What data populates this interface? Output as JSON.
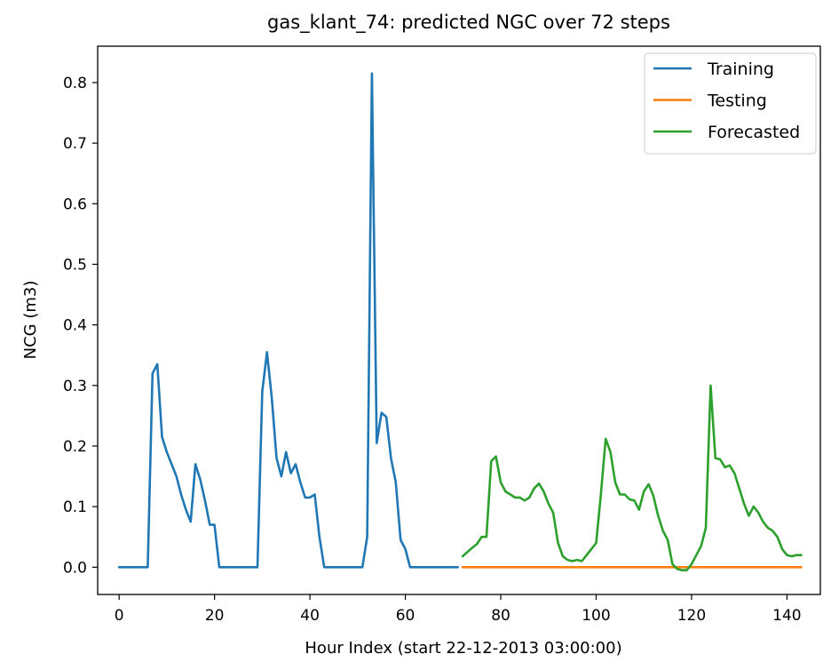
{
  "chart_data": {
    "type": "line",
    "title": "gas_klant_74: predicted NGC over 72 steps",
    "xlabel": "Hour Index (start 22-12-2013 03:00:00)",
    "ylabel": "NCG (m3)",
    "xlim": [
      -4.5,
      147
    ],
    "ylim": [
      -0.045,
      0.86
    ],
    "xticks": [
      0,
      20,
      40,
      60,
      80,
      100,
      120,
      140
    ],
    "yticks": [
      0.0,
      0.1,
      0.2,
      0.3,
      0.4,
      0.5,
      0.6,
      0.7,
      0.8
    ],
    "ytick_labels": [
      "0.0",
      "0.1",
      "0.2",
      "0.3",
      "0.4",
      "0.5",
      "0.6",
      "0.7",
      "0.8"
    ],
    "grid": false,
    "legend_position": "top-right",
    "series": [
      {
        "name": "Training",
        "color": "#1f77b4",
        "x": [
          0,
          1,
          2,
          3,
          4,
          5,
          6,
          7,
          8,
          9,
          10,
          11,
          12,
          13,
          14,
          15,
          16,
          17,
          18,
          19,
          20,
          21,
          22,
          23,
          24,
          25,
          26,
          27,
          28,
          29,
          30,
          31,
          32,
          33,
          34,
          35,
          36,
          37,
          38,
          39,
          40,
          41,
          42,
          43,
          44,
          45,
          46,
          47,
          48,
          49,
          50,
          51,
          52,
          53,
          54,
          55,
          56,
          57,
          58,
          59,
          60,
          61,
          62,
          63,
          64,
          65,
          66,
          67,
          68,
          69,
          70,
          71
        ],
        "y": [
          0,
          0,
          0,
          0,
          0,
          0,
          0,
          0.32,
          0.335,
          0.215,
          0.19,
          0.17,
          0.15,
          0.12,
          0.095,
          0.075,
          0.17,
          0.145,
          0.11,
          0.07,
          0.07,
          0,
          0,
          0,
          0,
          0,
          0,
          0,
          0,
          0,
          0.29,
          0.355,
          0.28,
          0.18,
          0.15,
          0.19,
          0.155,
          0.17,
          0.14,
          0.115,
          0.115,
          0.12,
          0.05,
          0,
          0,
          0,
          0,
          0,
          0,
          0,
          0,
          0,
          0.05,
          0.815,
          0.205,
          0.255,
          0.248,
          0.18,
          0.14,
          0.045,
          0.03,
          0,
          0,
          0,
          0,
          0,
          0,
          0,
          0,
          0,
          0,
          0
        ]
      },
      {
        "name": "Testing",
        "color": "#ff7f0e",
        "x": [
          72,
          73,
          74,
          75,
          76,
          77,
          78,
          79,
          80,
          81,
          82,
          83,
          84,
          85,
          86,
          87,
          88,
          89,
          90,
          91,
          92,
          93,
          94,
          95,
          96,
          97,
          98,
          99,
          100,
          101,
          102,
          103,
          104,
          105,
          106,
          107,
          108,
          109,
          110,
          111,
          112,
          113,
          114,
          115,
          116,
          117,
          118,
          119,
          120,
          121,
          122,
          123,
          124,
          125,
          126,
          127,
          128,
          129,
          130,
          131,
          132,
          133,
          134,
          135,
          136,
          137,
          138,
          139,
          140,
          141,
          142,
          143
        ],
        "y": [
          0,
          0,
          0,
          0,
          0,
          0,
          0,
          0,
          0,
          0,
          0,
          0,
          0,
          0,
          0,
          0,
          0,
          0,
          0,
          0,
          0,
          0,
          0,
          0,
          0,
          0,
          0,
          0,
          0,
          0,
          0,
          0,
          0,
          0,
          0,
          0,
          0,
          0,
          0,
          0,
          0,
          0,
          0,
          0,
          0,
          0,
          0,
          0,
          0,
          0,
          0,
          0,
          0,
          0,
          0,
          0,
          0,
          0,
          0,
          0,
          0,
          0,
          0,
          0,
          0,
          0,
          0,
          0,
          0,
          0,
          0,
          0
        ]
      },
      {
        "name": "Forecasted",
        "color": "#2ca02c",
        "x": [
          72,
          73,
          74,
          75,
          76,
          77,
          78,
          79,
          80,
          81,
          82,
          83,
          84,
          85,
          86,
          87,
          88,
          89,
          90,
          91,
          92,
          93,
          94,
          95,
          96,
          97,
          98,
          99,
          100,
          101,
          102,
          103,
          104,
          105,
          106,
          107,
          108,
          109,
          110,
          111,
          112,
          113,
          114,
          115,
          116,
          117,
          118,
          119,
          120,
          121,
          122,
          123,
          124,
          125,
          126,
          127,
          128,
          129,
          130,
          131,
          132,
          133,
          134,
          135,
          136,
          137,
          138,
          139,
          140,
          141,
          142,
          143
        ],
        "y": [
          0.018,
          0.025,
          0.032,
          0.038,
          0.05,
          0.05,
          0.175,
          0.183,
          0.14,
          0.125,
          0.12,
          0.115,
          0.115,
          0.11,
          0.115,
          0.13,
          0.138,
          0.125,
          0.105,
          0.09,
          0.04,
          0.018,
          0.012,
          0.01,
          0.012,
          0.01,
          0.02,
          0.03,
          0.04,
          0.12,
          0.212,
          0.19,
          0.14,
          0.12,
          0.12,
          0.112,
          0.11,
          0.095,
          0.125,
          0.137,
          0.118,
          0.085,
          0.06,
          0.045,
          0.005,
          -0.003,
          -0.005,
          -0.005,
          0.005,
          0.02,
          0.035,
          0.065,
          0.3,
          0.18,
          0.178,
          0.165,
          0.168,
          0.155,
          0.13,
          0.105,
          0.085,
          0.1,
          0.09,
          0.075,
          0.065,
          0.06,
          0.05,
          0.03,
          0.02,
          0.018,
          0.02,
          0.02
        ]
      }
    ]
  }
}
